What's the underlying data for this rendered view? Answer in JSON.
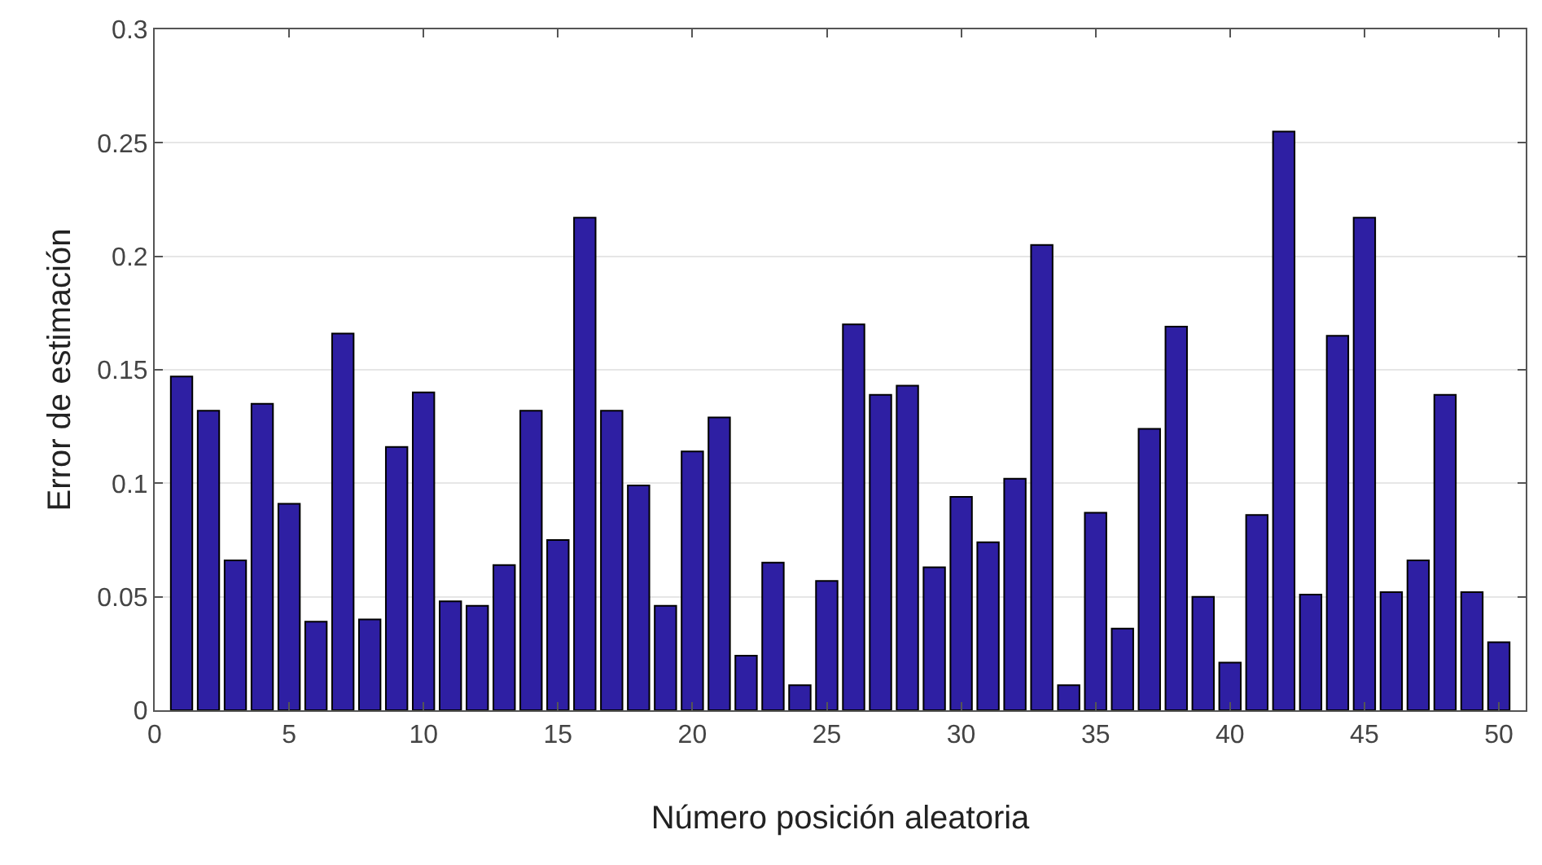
{
  "chart_data": {
    "type": "bar",
    "xlabel": "Número posición aleatoria",
    "ylabel": "Error de estimación",
    "x": [
      1,
      2,
      3,
      4,
      5,
      6,
      7,
      8,
      9,
      10,
      11,
      12,
      13,
      14,
      15,
      16,
      17,
      18,
      19,
      20,
      21,
      22,
      23,
      24,
      25,
      26,
      27,
      28,
      29,
      30,
      31,
      32,
      33,
      34,
      35,
      36,
      37,
      38,
      39,
      40,
      41,
      42,
      43,
      44,
      45,
      46,
      47,
      48,
      49,
      50
    ],
    "values": [
      0.147,
      0.132,
      0.066,
      0.135,
      0.091,
      0.039,
      0.166,
      0.04,
      0.116,
      0.14,
      0.048,
      0.046,
      0.064,
      0.132,
      0.075,
      0.217,
      0.132,
      0.099,
      0.046,
      0.114,
      0.129,
      0.024,
      0.065,
      0.011,
      0.057,
      0.17,
      0.139,
      0.143,
      0.063,
      0.094,
      0.074,
      0.102,
      0.205,
      0.011,
      0.087,
      0.036,
      0.124,
      0.169,
      0.05,
      0.021,
      0.086,
      0.255,
      0.051,
      0.165,
      0.217,
      0.052,
      0.066,
      0.139,
      0.052,
      0.03
    ],
    "color": "#2e1fa3",
    "xlim": [
      0,
      51
    ],
    "xticks": [
      0,
      5,
      10,
      15,
      20,
      25,
      30,
      35,
      40,
      45,
      50
    ],
    "ylim": [
      0,
      0.3
    ],
    "yticks": [
      0,
      0.05,
      0.1,
      0.15,
      0.2,
      0.25,
      0.3
    ],
    "grid": "y"
  }
}
